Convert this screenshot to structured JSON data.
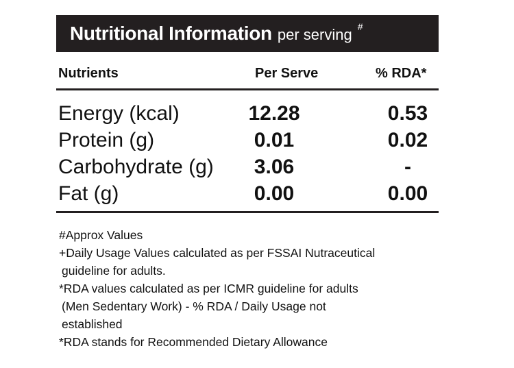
{
  "header": {
    "title": "Nutritional Information",
    "subtitle": "per serving",
    "mark": "#"
  },
  "table": {
    "columns": [
      "Nutrients",
      "Per Serve",
      "% RDA*"
    ],
    "rows": [
      {
        "name": "Energy (kcal)",
        "per_serve": "12.28",
        "rda": "0.53"
      },
      {
        "name": "Protein (g)",
        "per_serve": "0.01",
        "rda": "0.02"
      },
      {
        "name": "Carbohydrate (g)",
        "per_serve": "3.06",
        "rda": "-"
      },
      {
        "name": "Fat (g)",
        "per_serve": "0.00",
        "rda": "0.00"
      }
    ]
  },
  "notes": [
    "#Approx Values",
    "+Daily Usage Values calculated as per FSSAI Nutraceutical",
    "guideline for adults.",
    "*RDA values calculated as per ICMR guideline for adults",
    "(Men Sedentary Work) - % RDA / Daily Usage not",
    "established",
    "*RDA stands for Recommended Dietary Allowance"
  ]
}
